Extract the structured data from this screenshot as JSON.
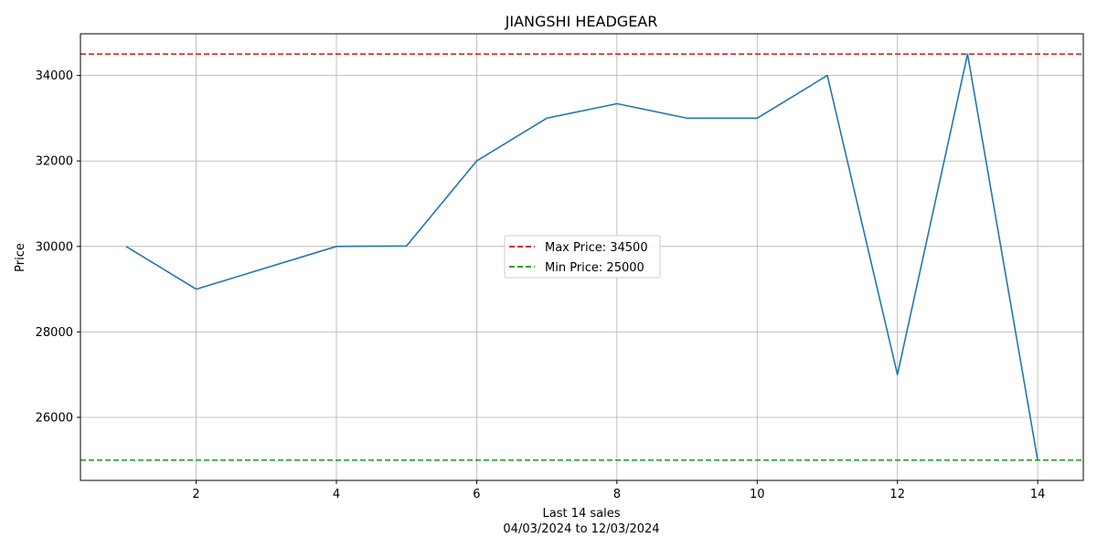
{
  "chart_data": {
    "type": "line",
    "title": "JIANGSHI HEADGEAR",
    "xlabel": "Last 14 sales",
    "xlabel_sub": "04/03/2024 to 12/03/2024",
    "ylabel": "Price",
    "x": [
      1,
      2,
      4,
      5,
      6,
      7,
      8,
      9,
      10,
      11,
      12,
      13,
      14
    ],
    "series": [
      {
        "values": [
          30000,
          29000,
          30000,
          30010,
          32000,
          33000,
          33340,
          33000,
          33000,
          34000,
          27000,
          34500,
          25000
        ],
        "color": "#1f77b4"
      }
    ],
    "reference_lines": [
      {
        "label": "Max Price: 34500",
        "value": 34500,
        "color": "#d62728",
        "style": "dashed"
      },
      {
        "label": "Min Price: 25000",
        "value": 25000,
        "color": "#2ca02c",
        "style": "dashed"
      }
    ],
    "xticks": [
      2,
      4,
      6,
      8,
      10,
      12,
      14
    ],
    "yticks": [
      26000,
      28000,
      30000,
      32000,
      34000
    ],
    "xlim": [
      0.35,
      14.65
    ],
    "ylim": [
      24525,
      34975
    ],
    "grid": true,
    "legend_position": "center"
  }
}
